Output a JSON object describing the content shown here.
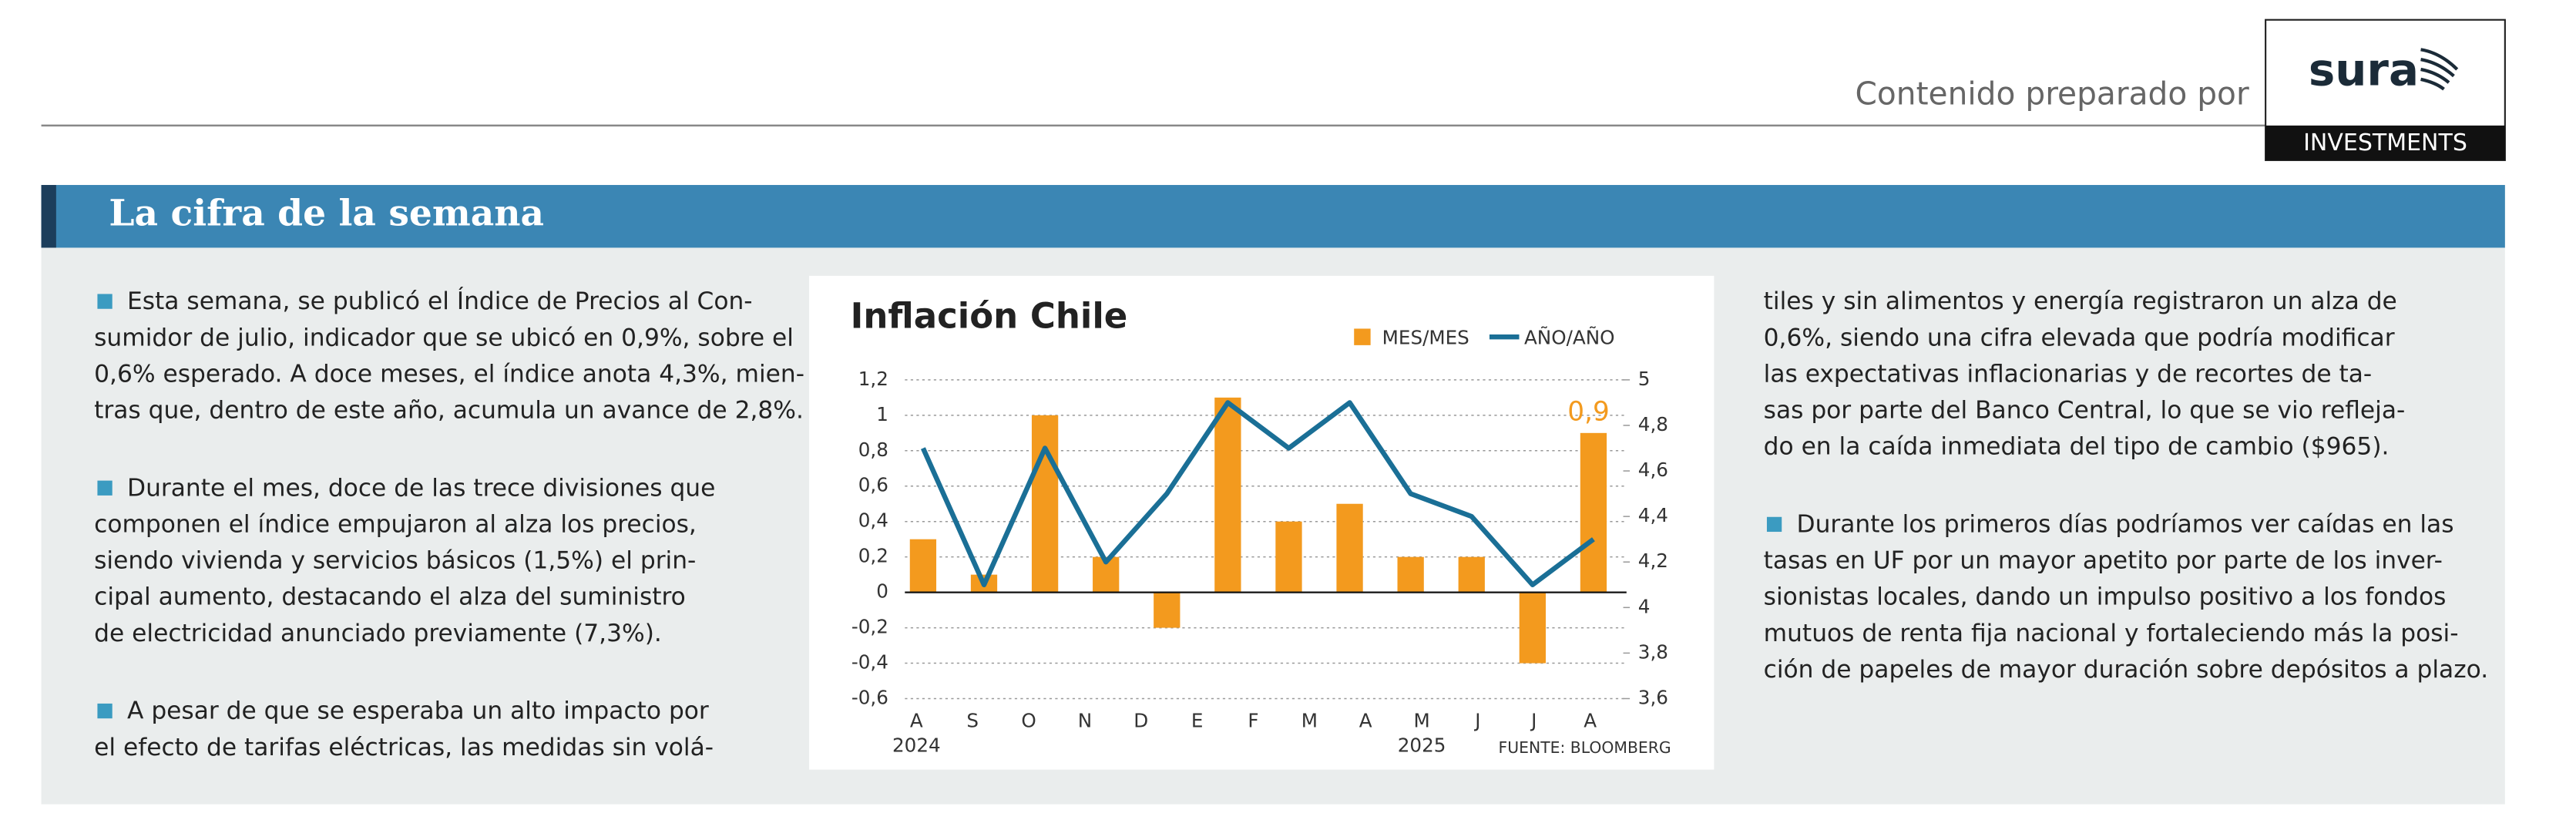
{
  "header": {
    "prepared_by": "Contenido preparado por",
    "logo": {
      "brand": "sura",
      "sub": "INVESTMENTS"
    }
  },
  "section_title": "La cifra de la semana",
  "columns": [
    [
      {
        "bullet": true,
        "lines": [
          "Esta semana, se publicó el Índice de Precios al Con-",
          "sumidor de julio, indicador que se ubicó en 0,9%, sobre el",
          "0,6% esperado. A doce meses, el índice anota 4,3%, mien-",
          "tras que, dentro de este año, acumula un avance de 2,8%."
        ]
      },
      {
        "bullet": true,
        "lines": [
          "Durante el mes, doce de las trece divisiones que",
          "componen el índice empujaron al alza los precios,",
          "siendo vivienda y servicios básicos (1,5%) el prin-",
          "cipal aumento, destacando el alza del suministro",
          "de electricidad anunciado previamente (7,3%)."
        ]
      },
      {
        "bullet": true,
        "lines": [
          "A pesar de que se esperaba un alto impacto por",
          "el efecto de tarifas eléctricas, las medidas sin volá-"
        ]
      }
    ],
    [
      {
        "bullet": false,
        "lines": [
          "tiles y sin alimentos y energía registraron un alza de",
          "0,6%, siendo una cifra elevada que podría modificar",
          "las expectativas inflacionarias y de recortes de ta-",
          "sas por parte del Banco Central, lo que se vio refleja-",
          "do en la caída inmediata del tipo de cambio ($965)."
        ]
      },
      {
        "bullet": true,
        "lines": [
          "Durante los primeros días podríamos ver caídas en las",
          "tasas en UF por un mayor apetito por parte de los inver-",
          "sionistas locales, dando un impulso positivo a los fondos",
          "mutuos de renta fija nacional y fortaleciendo más la posi-",
          "ción de papeles de mayor duración sobre depósitos a plazo."
        ]
      }
    ]
  ],
  "chart_data": {
    "type": "bar_line",
    "title": "Inflación Chile",
    "source": "FUENTE: BLOOMBERG",
    "x_labels": [
      "A",
      "S",
      "O",
      "N",
      "D",
      "E",
      "F",
      "M",
      "A",
      "M",
      "J",
      "J",
      "A"
    ],
    "year_labels": [
      {
        "index": 0,
        "label": "2024"
      },
      {
        "index": 9,
        "label": "2025"
      }
    ],
    "series": [
      {
        "name": "MES/MES",
        "color": "#f39a1e",
        "type": "bar",
        "values": [
          0.3,
          0.1,
          1.0,
          0.2,
          -0.2,
          1.1,
          0.4,
          0.5,
          0.2,
          0.2,
          -0.4,
          0.9
        ],
        "value_labels": [
          null,
          null,
          null,
          null,
          null,
          null,
          null,
          null,
          null,
          null,
          null,
          "0,9"
        ]
      },
      {
        "name": "AÑO/AÑO",
        "color": "#1a6f96",
        "type": "line",
        "axis": "y2",
        "values": [
          4.7,
          4.1,
          4.7,
          4.2,
          4.5,
          4.9,
          4.7,
          4.9,
          4.5,
          4.4,
          4.1,
          4.3
        ]
      }
    ],
    "ylim": [
      -0.6,
      1.2
    ],
    "yticks": [
      {
        "value": 1.2,
        "label": "1,2"
      },
      1,
      {
        "value": 0.8,
        "label": "0,8"
      },
      {
        "value": 0.6,
        "label": "0,6"
      },
      {
        "value": 0.4,
        "label": "0,4"
      },
      {
        "value": 0.2,
        "label": "0,2"
      },
      0,
      {
        "value": -0.2,
        "label": "-0,2"
      },
      {
        "value": -0.4,
        "label": "-0,4"
      },
      {
        "value": -0.6,
        "label": "-0,6"
      }
    ],
    "y2lim": [
      3.6,
      5
    ],
    "y2ticks": [
      5,
      {
        "value": 4.8,
        "label": "4,8"
      },
      {
        "value": 4.6,
        "label": "4,6"
      },
      {
        "value": 4.4,
        "label": "4,4"
      },
      {
        "value": 4.2,
        "label": "4,2"
      },
      4,
      {
        "value": 3.8,
        "label": "3,8"
      },
      {
        "value": 3.6,
        "label": "3,6"
      }
    ],
    "grid": true,
    "legend": "top-right"
  }
}
